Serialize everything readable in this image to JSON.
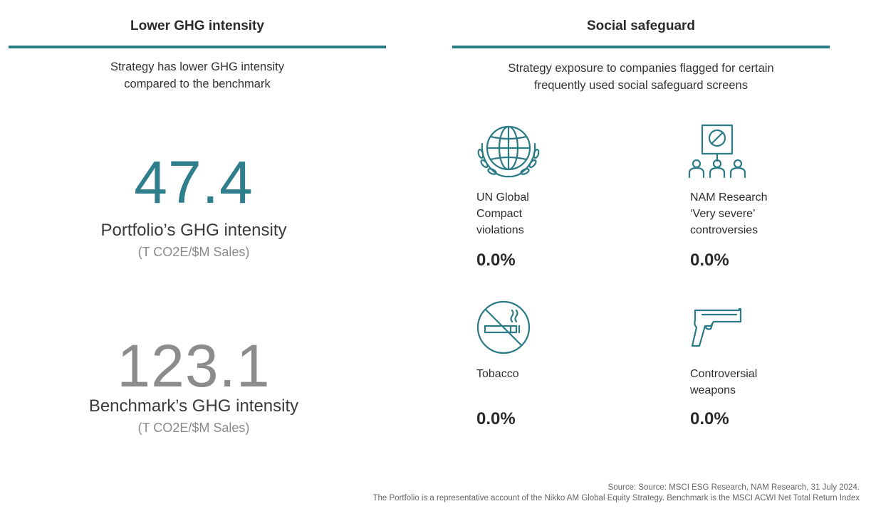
{
  "left": {
    "header": "Lower GHG intensity",
    "subtitle_line1": "Strategy has lower GHG intensity",
    "subtitle_line2": "compared to  the benchmark",
    "portfolio": {
      "value": "47.4",
      "label": "Portfolio’s GHG intensity",
      "unit": "(T CO2E/$M Sales)"
    },
    "benchmark": {
      "value": "123.1",
      "label": "Benchmark’s GHG intensity",
      "unit": "(T CO2E/$M Sales)"
    }
  },
  "right": {
    "header": "Social safeguard",
    "subtitle_line1": "Strategy exposure to companies flagged for certain",
    "subtitle_line2": "frequently used social safeguard screens",
    "flags": [
      {
        "icon": "globe-laurel-icon",
        "lines": [
          "UN Global",
          "Compact",
          "violations"
        ],
        "value": "0.0%"
      },
      {
        "icon": "protest-sign-icon",
        "lines": [
          "NAM Research",
          "‘Very severe’",
          "controversies"
        ],
        "value": "0.0%"
      },
      {
        "icon": "no-smoking-icon",
        "lines": [
          "Tobacco"
        ],
        "value": "0.0%"
      },
      {
        "icon": "pistol-icon",
        "lines": [
          "Controversial",
          "weapons"
        ],
        "value": "0.0%"
      }
    ]
  },
  "colors": {
    "accent": "#2b7a86",
    "teal_number": "#2f7e8c",
    "grey_number": "#8c8c8c"
  },
  "footer": {
    "line1": "Source: Source: MSCI ESG Research, NAM Research, 31 July 2024.",
    "line2": "The Portfolio is a representative account of the Nikko AM Global Equity Strategy. Benchmark is the MSCI ACWI Net Total Return Index"
  }
}
